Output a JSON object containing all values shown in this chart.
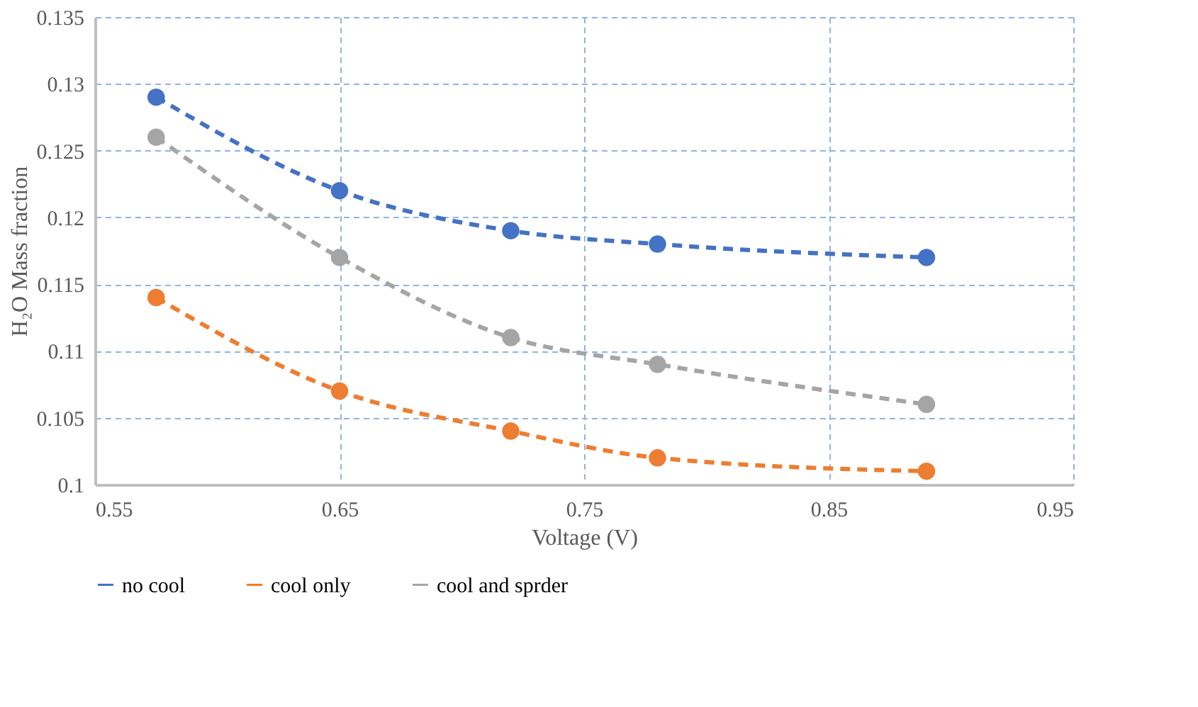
{
  "chart_data": {
    "type": "line",
    "xlabel": "Voltage (V)",
    "ylabel": "H₂O Mass fraction",
    "x": [
      0.575,
      0.65,
      0.72,
      0.78,
      0.89
    ],
    "series": [
      {
        "name": "no cool",
        "color": "#4472c4",
        "values": [
          0.129,
          0.122,
          0.119,
          0.118,
          0.117
        ],
        "line_style": "dashed"
      },
      {
        "name": "cool only",
        "color": "#ed7d31",
        "values": [
          0.114,
          0.107,
          0.104,
          0.102,
          0.101
        ],
        "line_style": "dashed"
      },
      {
        "name": "cool and sprder",
        "color": "#a5a5a5",
        "values": [
          0.126,
          0.117,
          0.111,
          0.109,
          0.106
        ],
        "line_style": "dashed"
      }
    ],
    "xlim": [
      0.55,
      0.95
    ],
    "xticks": [
      0.55,
      0.65,
      0.75,
      0.85,
      0.95
    ],
    "ylim": [
      0.1,
      0.135
    ],
    "yticks": [
      0.1,
      0.105,
      0.11,
      0.115,
      0.12,
      0.125,
      0.13,
      0.135
    ],
    "grid": true,
    "legend": "bottom",
    "marker": "circle"
  }
}
